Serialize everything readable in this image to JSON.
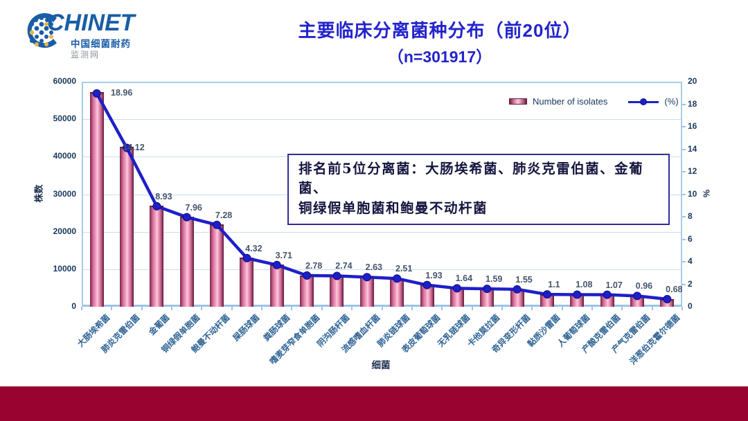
{
  "logo": {
    "brand": "CHINET",
    "sub1": "中国细菌耐药",
    "sub2": "监测网"
  },
  "title": {
    "line1": "主要临床分离菌种分布（前20位）",
    "line2": "（n=301917）",
    "color": "#2323CC"
  },
  "legend": {
    "bar_label": "Number of isolates",
    "line_label": "(%)"
  },
  "annotation": {
    "line1": "排名前5位分离菌：大肠埃希菌、肺炎克雷伯菌、金葡菌、",
    "line2": "铜绿假单胞菌和鲍曼不动杆菌"
  },
  "colors": {
    "line": "#1F1FC8",
    "bar_center": "#F5A8C6",
    "bar_edge": "#6E2140",
    "footer": "#99032F",
    "plot_border": "#A9CCE8"
  },
  "chart_data": {
    "type": "bar+line",
    "n_total": 301917,
    "categories": [
      "大肠埃希菌",
      "肺炎克雷伯菌",
      "金葡菌",
      "铜绿假单胞菌",
      "鲍曼不动杆菌",
      "屎肠球菌",
      "粪肠球菌",
      "嗜麦芽窄食单胞菌",
      "阴沟肠杆菌",
      "流感嗜血杆菌",
      "肺炎链球菌",
      "表皮葡萄球菌",
      "无乳链球菌",
      "卡他莫拉菌",
      "奇异变形杆菌",
      "黏质沙雷菌",
      "人葡萄球菌",
      "产酸克雷伯菌",
      "产气克雷伯菌",
      "洋葱伯克霍尔德菌"
    ],
    "series": [
      {
        "name": "Number of isolates",
        "type": "bar",
        "axis": "left",
        "values": [
          57243,
          42631,
          26961,
          24033,
          21980,
          13043,
          11201,
          8393,
          8273,
          7940,
          7578,
          5827,
          4951,
          4800,
          4680,
          3321,
          3261,
          3231,
          2898,
          2053
        ]
      },
      {
        "name": "(%)",
        "type": "line",
        "axis": "right",
        "values": [
          18.96,
          14.12,
          8.93,
          7.96,
          7.28,
          4.32,
          3.71,
          2.78,
          2.74,
          2.63,
          2.51,
          1.93,
          1.64,
          1.59,
          1.55,
          1.1,
          1.08,
          1.07,
          0.96,
          0.68
        ],
        "labels": [
          "18.96",
          "14.12",
          "8.93",
          "7.96",
          "7.28",
          "4.32",
          "3.71",
          "2.78",
          "2.74",
          "2.63",
          "2.51",
          "1.93",
          "1.64",
          "1.59",
          "1.55",
          "1.1",
          "1.08",
          "1.07",
          "0.96",
          "0.68"
        ]
      }
    ],
    "left_axis": {
      "label": "株数",
      "min": 0,
      "max": 60000,
      "step": 10000,
      "ticks": [
        "0",
        "10000",
        "20000",
        "30000",
        "40000",
        "50000",
        "60000"
      ]
    },
    "right_axis": {
      "label": "%",
      "min": 0,
      "max": 20,
      "step": 2,
      "ticks": [
        "0",
        "2",
        "4",
        "6",
        "8",
        "10",
        "12",
        "14",
        "16",
        "18",
        "20"
      ]
    },
    "xlabel": "细菌",
    "grid": true,
    "legend_position": "top-right-inside"
  }
}
